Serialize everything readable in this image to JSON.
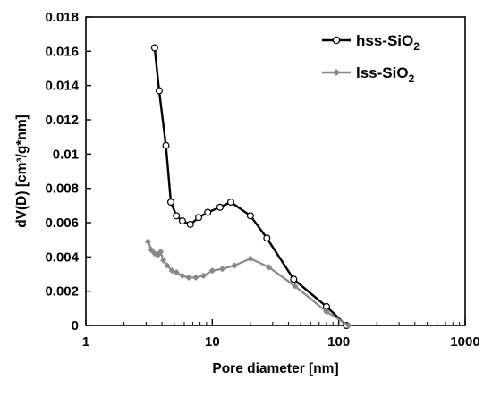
{
  "chart_data": {
    "type": "line",
    "title": "",
    "xlabel": "Pore diameter [nm]",
    "ylabel": "dV(D) [cm³/g*nm]",
    "xscale": "log",
    "xlim": [
      1,
      1000
    ],
    "ylim": [
      0,
      0.018
    ],
    "x_ticks": [
      "1",
      "10",
      "100",
      "1000"
    ],
    "y_ticks": [
      "0",
      "0.002",
      "0.004",
      "0.006",
      "0.008",
      "0.01",
      "0.012",
      "0.014",
      "0.016",
      "0.018"
    ],
    "grid": false,
    "legend_position": "top-right",
    "series": [
      {
        "name": "hss-SiO",
        "name_subscript": "2",
        "color": "#000000",
        "marker": "open-circle",
        "x": [
          3.5,
          3.8,
          4.3,
          4.7,
          5.2,
          5.8,
          6.7,
          7.8,
          9.2,
          11.5,
          14,
          20,
          27,
          44,
          80,
          115
        ],
        "y": [
          0.0162,
          0.0137,
          0.0105,
          0.0072,
          0.0064,
          0.0061,
          0.0059,
          0.0063,
          0.0066,
          0.0069,
          0.0072,
          0.0064,
          0.0051,
          0.0027,
          0.0011,
          0.0
        ]
      },
      {
        "name": "lss-SiO",
        "name_subscript": "2",
        "color": "#888888",
        "marker": "filled-diamond",
        "x": [
          3.1,
          3.3,
          3.5,
          3.7,
          3.9,
          4.1,
          4.4,
          4.8,
          5.2,
          5.8,
          6.5,
          7.4,
          8.5,
          10,
          12,
          15,
          20,
          28,
          45,
          80,
          120
        ],
        "y": [
          0.0049,
          0.0044,
          0.0042,
          0.0041,
          0.0043,
          0.0038,
          0.0035,
          0.0032,
          0.0031,
          0.0029,
          0.0028,
          0.0028,
          0.0029,
          0.0032,
          0.0033,
          0.0035,
          0.0039,
          0.0034,
          0.0023,
          0.0008,
          0.0
        ]
      }
    ]
  }
}
